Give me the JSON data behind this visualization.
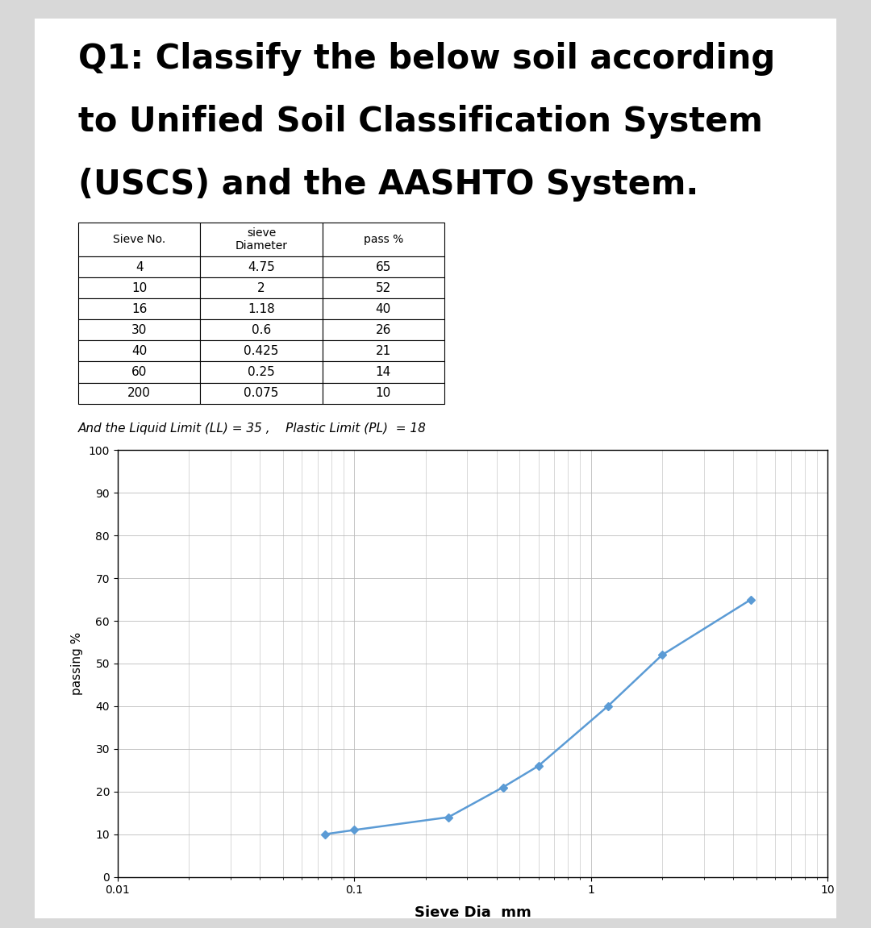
{
  "title_lines": [
    "Q1: Classify the below soil according",
    "to Unified Soil Classification System",
    "(USCS) and the AASHTO System."
  ],
  "table_headers_row1": [
    "Sieve No.",
    "sieve",
    ""
  ],
  "table_headers_row2": [
    "",
    "Diameter",
    "pass %"
  ],
  "table_data": [
    [
      "4",
      "4.75",
      "65"
    ],
    [
      "10",
      "2",
      "52"
    ],
    [
      "16",
      "1.18",
      "40"
    ],
    [
      "30",
      "0.6",
      "26"
    ],
    [
      "40",
      "0.425",
      "21"
    ],
    [
      "60",
      "0.25",
      "14"
    ],
    [
      "200",
      "0.075",
      "10"
    ]
  ],
  "ll_pl_text": "And the Liquid Limit (LL) = 35 ,    Plastic Limit (PL)  = 18",
  "sieve_diameters": [
    0.075,
    0.1,
    0.25,
    0.425,
    0.6,
    1.18,
    2.0,
    4.75
  ],
  "pass_percent": [
    10,
    11,
    14,
    21,
    26,
    40,
    52,
    65
  ],
  "xlabel": "Sieve Dia  mm",
  "ylabel": "passing %",
  "xlim_log": [
    0.01,
    10
  ],
  "ylim": [
    0,
    100
  ],
  "yticks": [
    0,
    10,
    20,
    30,
    40,
    50,
    60,
    70,
    80,
    90,
    100
  ],
  "xtick_values": [
    0.01,
    0.1,
    1,
    10
  ],
  "xtick_labels": [
    "0.01",
    "0.1",
    "1",
    "10"
  ],
  "line_color": "#5b9bd5",
  "marker_color": "#5b9bd5",
  "background_color": "#ffffff",
  "grid_color": "#bbbbbb",
  "page_bg": "#d8d8d8",
  "title_fontsize": 30,
  "table_fontsize": 11
}
